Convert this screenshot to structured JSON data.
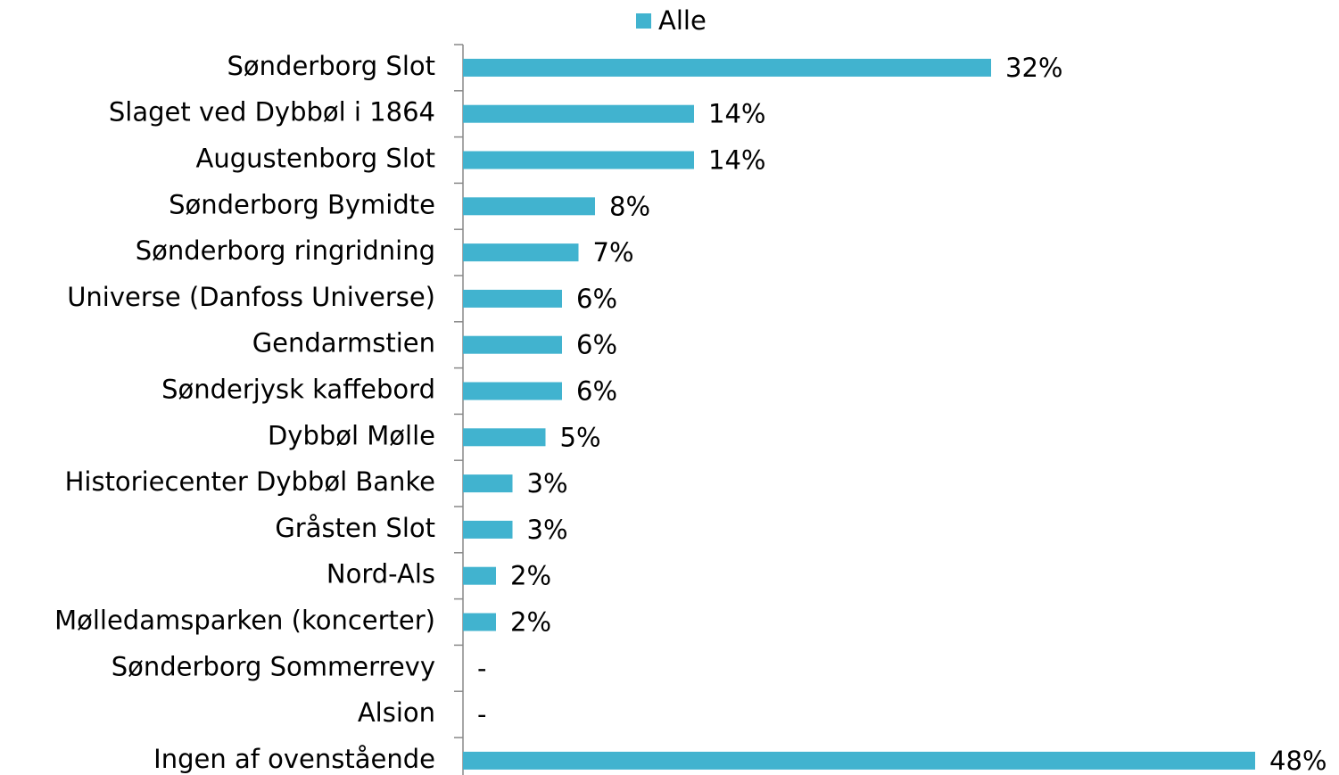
{
  "chart_data": {
    "type": "hbar",
    "categories": [
      "Sønderborg Slot",
      "Slaget ved Dybbøl i 1864",
      "Augustenborg Slot",
      "Sønderborg Bymidte",
      "Sønderborg ringridning",
      "Universe (Danfoss Universe)",
      "Gendarmstien",
      "Sønderjysk kaffebord",
      "Dybbøl Mølle",
      "Historiecenter Dybbøl Banke",
      "Gråsten Slot",
      "Nord-Als",
      "Mølledamsparken (koncerter)",
      "Sønderborg Sommerrevy",
      "Alsion",
      "Ingen af ovenstående"
    ],
    "series": [
      {
        "name": "Alle",
        "color": "#41b3cf",
        "values": [
          32,
          14,
          14,
          8,
          7,
          6,
          6,
          6,
          5,
          3,
          3,
          2,
          2,
          0,
          0,
          48
        ],
        "value_labels": [
          "32%",
          "14%",
          "14%",
          "8%",
          "7%",
          "6%",
          "6%",
          "6%",
          "5%",
          "3%",
          "3%",
          "2%",
          "2%",
          "-",
          "-",
          "48%"
        ]
      }
    ],
    "legend": "top"
  }
}
